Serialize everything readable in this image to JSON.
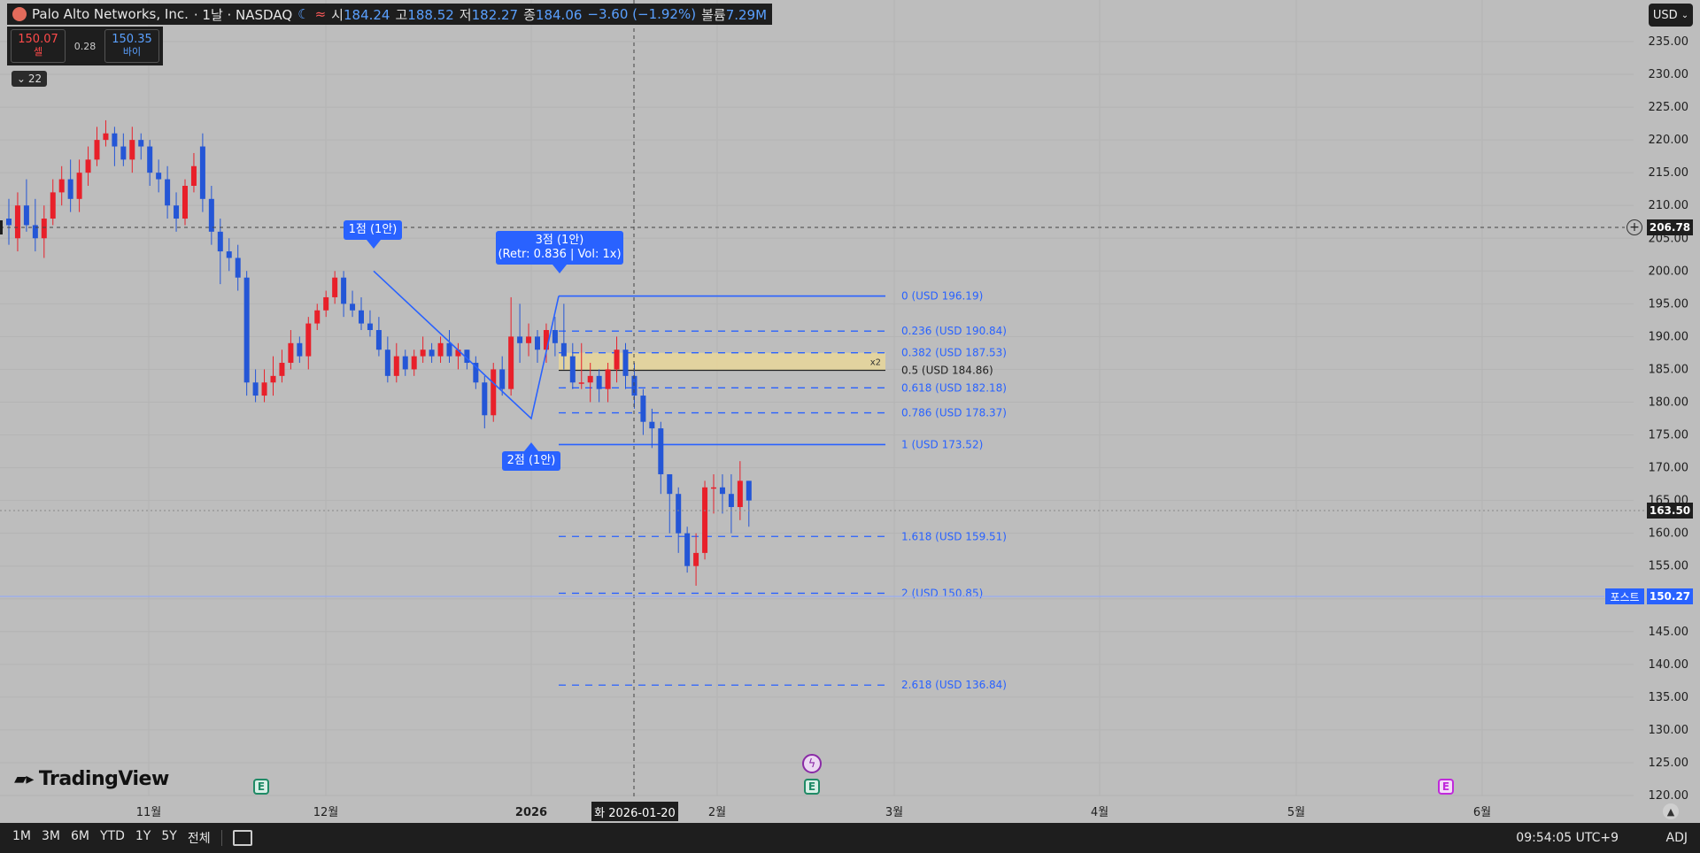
{
  "header": {
    "symbol": "Palo Alto Networks, Inc.",
    "interval": "· 1날 · NASDAQ",
    "open_label": "시",
    "open": "184.24",
    "high_label": "고",
    "high": "188.52",
    "low_label": "저",
    "low": "182.27",
    "close_label": "종",
    "close": "184.06",
    "change": "−3.60 (−1.92%)",
    "volume_label": "볼륨",
    "volume": "7.29M"
  },
  "trade": {
    "sell_price": "150.07",
    "sell_label": "셀",
    "spread": "0.28",
    "buy_price": "150.35",
    "buy_label": "바이"
  },
  "indicators_collapsed": "22",
  "currency": "USD",
  "branding": "TradingView",
  "crosshair_date": "화 2026-01-20",
  "price_tags": {
    "crosshair": "206.78",
    "last": "163.50",
    "post_label": "포스트",
    "post": "150.27"
  },
  "fib_zone_label": "x2",
  "bottom_bar": {
    "ranges": [
      "1M",
      "3M",
      "6M",
      "YTD",
      "1Y",
      "5Y",
      "전체"
    ],
    "clock": "09:54:05 UTC+9",
    "adj": "ADJ"
  },
  "colors": {
    "up": "#e8202a",
    "down": "#2456d6",
    "drawing": "#2962ff",
    "zone": "#e9d79a"
  },
  "icons": [
    "earnings-icon",
    "dividend-icon",
    "calendar-icon",
    "plus-icon",
    "chevron-down-icon"
  ],
  "chart_data": {
    "type": "candlestick",
    "y_axis": {
      "min": 120,
      "max": 235,
      "ticks": [
        "120.00",
        "125.00",
        "130.00",
        "135.00",
        "140.00",
        "145.00",
        "150.00",
        "155.00",
        "160.00",
        "165.00",
        "170.00",
        "175.00",
        "180.00",
        "185.00",
        "190.00",
        "195.00",
        "200.00",
        "205.00",
        "210.00",
        "215.00",
        "220.00",
        "225.00",
        "230.00",
        "235.00"
      ]
    },
    "x_axis": {
      "ticks": [
        "11월",
        "12월",
        "2026",
        "2월",
        "3월",
        "4월",
        "5월",
        "6월"
      ]
    },
    "candles": [
      [
        208,
        207,
        211,
        204
      ],
      [
        205,
        210,
        212,
        203
      ],
      [
        210,
        207,
        214,
        206
      ],
      [
        207,
        205,
        211,
        203
      ],
      [
        205,
        208,
        210,
        202
      ],
      [
        208,
        212,
        214,
        207
      ],
      [
        212,
        214,
        216,
        210
      ],
      [
        214,
        211,
        217,
        209
      ],
      [
        211,
        215,
        217,
        209
      ],
      [
        215,
        217,
        219,
        213
      ],
      [
        217,
        220,
        222,
        216
      ],
      [
        220,
        221,
        223,
        219
      ],
      [
        221,
        219,
        222,
        216
      ],
      [
        219,
        217,
        221,
        216
      ],
      [
        217,
        220,
        222,
        215
      ],
      [
        220,
        219,
        221,
        217
      ],
      [
        219,
        215,
        220,
        213
      ],
      [
        215,
        214,
        217,
        212
      ],
      [
        214,
        210,
        216,
        208
      ],
      [
        210,
        208,
        212,
        206
      ],
      [
        208,
        213,
        214,
        207
      ],
      [
        213,
        216,
        218,
        212
      ],
      [
        219,
        211,
        221,
        209
      ],
      [
        211,
        206,
        213,
        204
      ],
      [
        206,
        203,
        208,
        198
      ],
      [
        203,
        202,
        205,
        200
      ],
      [
        202,
        199,
        204,
        197
      ],
      [
        199,
        183,
        200,
        181
      ],
      [
        183,
        181,
        185,
        180
      ],
      [
        181,
        183,
        185,
        180
      ],
      [
        183,
        184,
        187,
        181
      ],
      [
        184,
        186,
        188,
        183
      ],
      [
        186,
        189,
        191,
        185
      ],
      [
        189,
        187,
        190,
        186
      ],
      [
        187,
        192,
        193,
        185
      ],
      [
        192,
        194,
        195,
        191
      ],
      [
        194,
        196,
        197,
        193
      ],
      [
        196,
        199,
        200,
        195
      ],
      [
        199,
        195,
        200,
        193
      ],
      [
        195,
        194,
        197,
        193
      ],
      [
        194,
        192,
        196,
        191
      ],
      [
        192,
        191,
        194,
        190
      ],
      [
        191,
        188,
        193,
        187
      ],
      [
        188,
        184,
        190,
        183
      ],
      [
        184,
        187,
        189,
        183
      ],
      [
        187,
        185,
        188,
        184
      ],
      [
        185,
        187,
        188,
        184
      ],
      [
        187,
        188,
        190,
        186
      ],
      [
        188,
        187,
        189,
        186
      ],
      [
        187,
        189,
        190,
        186
      ],
      [
        189,
        187,
        191,
        186
      ],
      [
        187,
        188,
        189,
        185
      ],
      [
        188,
        186,
        188,
        185
      ],
      [
        186,
        183,
        187,
        182
      ],
      [
        183,
        178,
        184,
        176
      ],
      [
        178,
        185,
        186,
        177
      ],
      [
        185,
        182,
        187,
        181
      ],
      [
        182,
        190,
        196,
        181
      ],
      [
        190,
        189,
        195,
        186
      ],
      [
        189,
        190,
        192,
        187
      ],
      [
        190,
        188,
        191,
        186
      ],
      [
        188,
        191,
        192,
        186
      ],
      [
        191,
        189,
        193,
        187
      ],
      [
        189,
        187,
        195,
        185
      ],
      [
        187,
        183,
        189,
        182
      ],
      [
        183,
        183,
        189,
        182
      ],
      [
        183,
        184,
        186,
        180
      ],
      [
        184,
        182,
        185,
        180
      ],
      [
        182,
        185,
        186,
        180
      ],
      [
        185,
        188,
        190,
        183
      ],
      [
        188,
        184,
        189,
        182
      ],
      [
        184,
        181,
        186,
        179
      ],
      [
        181,
        177,
        182,
        175
      ],
      [
        177,
        176,
        179,
        173
      ],
      [
        176,
        169,
        177,
        166
      ],
      [
        169,
        166,
        169,
        160
      ],
      [
        166,
        160,
        167,
        157
      ],
      [
        160,
        155,
        161,
        154
      ],
      [
        155,
        157,
        160,
        152
      ],
      [
        157,
        167,
        168,
        156
      ],
      [
        167,
        167,
        169,
        163
      ],
      [
        167,
        166,
        169,
        163
      ],
      [
        166,
        164,
        169,
        160
      ],
      [
        164,
        168,
        171,
        162
      ],
      [
        168,
        165,
        168,
        161
      ]
    ],
    "pattern_points": [
      {
        "label": "1점 (1안)"
      },
      {
        "label": "2점 (1안)"
      },
      {
        "label": "3점 (1안)",
        "detail": "(Retr: 0.836 | Vol: 1x)"
      }
    ],
    "fibonacci": [
      {
        "ratio": "0",
        "label": "0 (USD 196.19)",
        "price": 196.19
      },
      {
        "ratio": "0.236",
        "label": "0.236 (USD 190.84)",
        "price": 190.84
      },
      {
        "ratio": "0.382",
        "label": "0.382 (USD 187.53)",
        "price": 187.53
      },
      {
        "ratio": "0.5",
        "label": "0.5 (USD 184.86)",
        "price": 184.86
      },
      {
        "ratio": "0.618",
        "label": "0.618 (USD 182.18)",
        "price": 182.18
      },
      {
        "ratio": "0.786",
        "label": "0.786 (USD 178.37)",
        "price": 178.37
      },
      {
        "ratio": "1",
        "label": "1 (USD 173.52)",
        "price": 173.52
      },
      {
        "ratio": "1.618",
        "label": "1.618 (USD 159.51)",
        "price": 159.51
      },
      {
        "ratio": "2",
        "label": "2 (USD 150.85)",
        "price": 150.85
      },
      {
        "ratio": "2.618",
        "label": "2.618 (USD 136.84)",
        "price": 136.84
      }
    ]
  }
}
